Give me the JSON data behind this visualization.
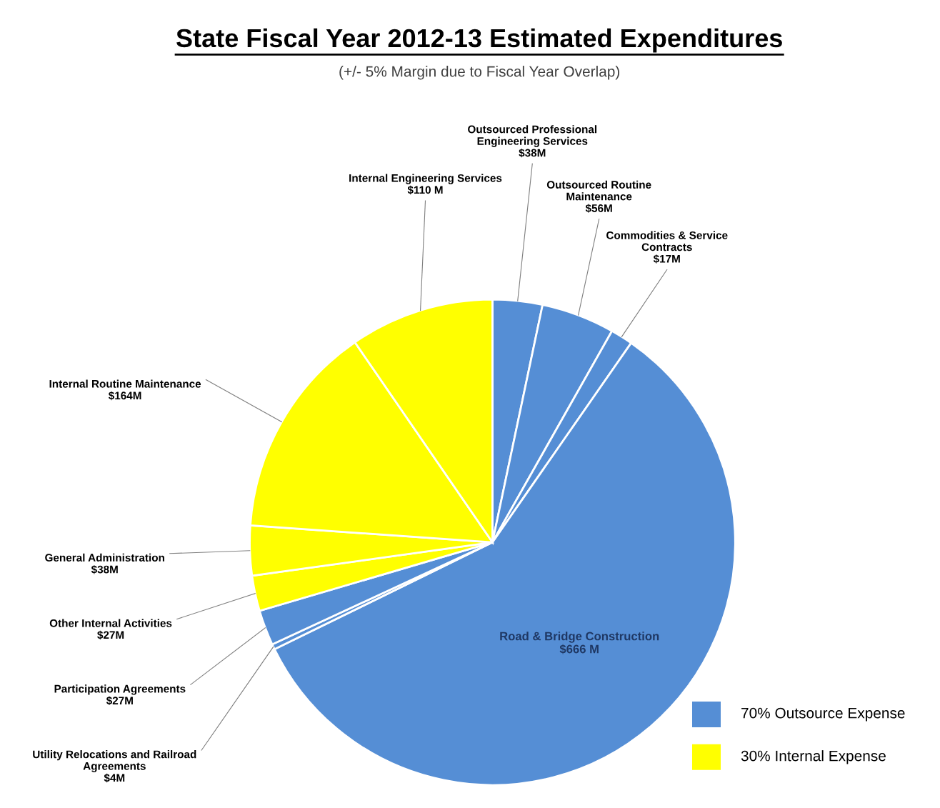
{
  "chart_data": {
    "type": "pie",
    "title": "State Fiscal Year 2012-13 Estimated Expenditures",
    "subtitle": "(+/- 5% Margin due to Fiscal Year Overlap)",
    "categories": [
      "Outsourced Professional\nEngineering Services",
      "Outsourced Routine\nMaintenance",
      "Commodities & Service\nContracts",
      "Road & Bridge Construction",
      "Utility Relocations and Railroad\nAgreements",
      "Participation Agreements",
      "Other Internal Activities",
      "General Administration",
      "Internal Routine Maintenance",
      "Internal Engineering Services"
    ],
    "value_labels": [
      "$38M",
      "$56M",
      "$17M",
      "$666 M",
      "$4M",
      "$27M",
      "$27M",
      "$38M",
      "$164M",
      "$110 M"
    ],
    "values": [
      38,
      56,
      17,
      666,
      4,
      27,
      27,
      38,
      164,
      110
    ],
    "colors": [
      "#558ed5",
      "#558ed5",
      "#558ed5",
      "#558ed5",
      "#558ed5",
      "#558ed5",
      "#ffff00",
      "#ffff00",
      "#ffff00",
      "#ffff00"
    ],
    "annotations": [
      "70% Outsource Expense",
      "30% Internal Expense"
    ]
  }
}
